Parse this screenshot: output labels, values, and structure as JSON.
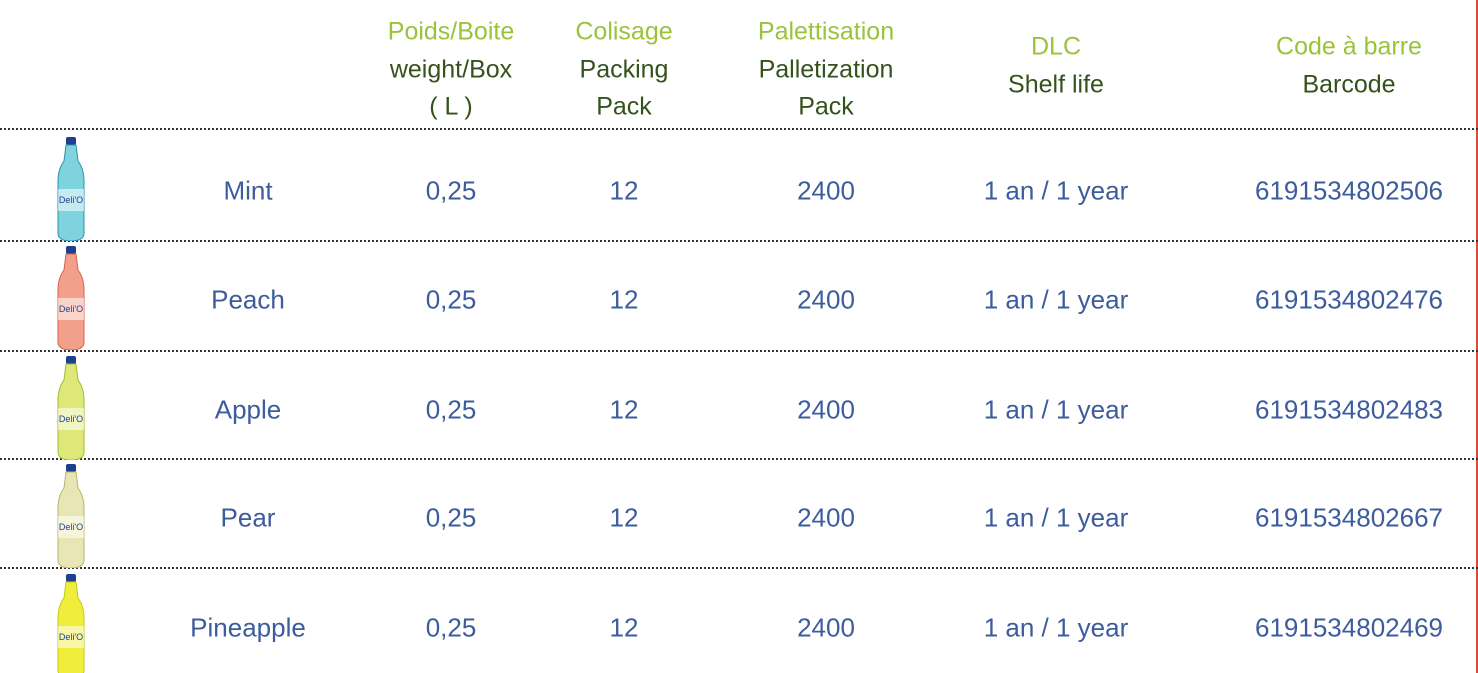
{
  "header": {
    "columns": [
      {
        "title": "Poids/Boite",
        "lines": [
          "weight/Box",
          "( L )"
        ]
      },
      {
        "title": "Colisage",
        "lines": [
          "Packing",
          "Pack"
        ]
      },
      {
        "title": "Palettisation",
        "lines": [
          "Palletization",
          "Pack"
        ]
      },
      {
        "title": "DLC",
        "lines": [
          "Shelf life"
        ]
      },
      {
        "title": "Code à barre",
        "lines": [
          "Barcode"
        ]
      }
    ]
  },
  "table": {
    "rows": [
      [
        "Mint",
        "0,25",
        "12",
        "2400",
        "1 an / 1 year",
        "6191534802506"
      ],
      [
        "Peach",
        "0,25",
        "12",
        "2400",
        "1 an / 1 year",
        "6191534802476"
      ],
      [
        "Apple",
        "0,25",
        "12",
        "2400",
        "1 an / 1 year",
        "6191534802483"
      ],
      [
        "Pear",
        "0,25",
        "12",
        "2400",
        "1 an / 1 year",
        "6191534802667"
      ],
      [
        "Pineapple",
        "0,25",
        "12",
        "2400",
        "1 an / 1 year",
        "6191534802469"
      ]
    ]
  }
}
